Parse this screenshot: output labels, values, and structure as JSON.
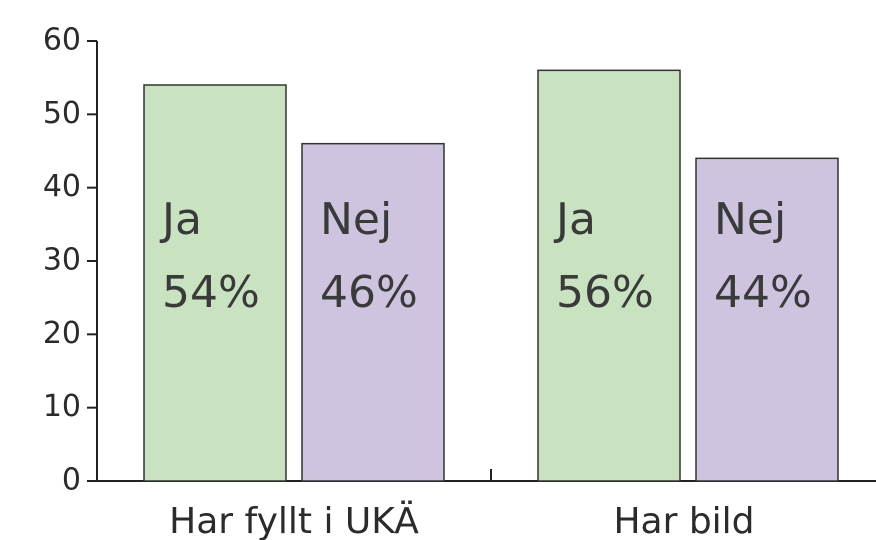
{
  "chart_data": {
    "type": "bar",
    "categories": [
      "Har fyllt i UKÄ",
      "Har bild"
    ],
    "series": [
      {
        "name": "Ja",
        "color": "#c9e3c1",
        "values": [
          54,
          56
        ],
        "value_labels": [
          "54%",
          "56%"
        ]
      },
      {
        "name": "Nej",
        "color": "#cec4e0",
        "values": [
          46,
          44
        ],
        "value_labels": [
          "46%",
          "44%"
        ]
      }
    ],
    "ylim": [
      0,
      60
    ],
    "yticks": [
      0,
      10,
      20,
      30,
      40,
      50,
      60
    ],
    "grid": false
  }
}
